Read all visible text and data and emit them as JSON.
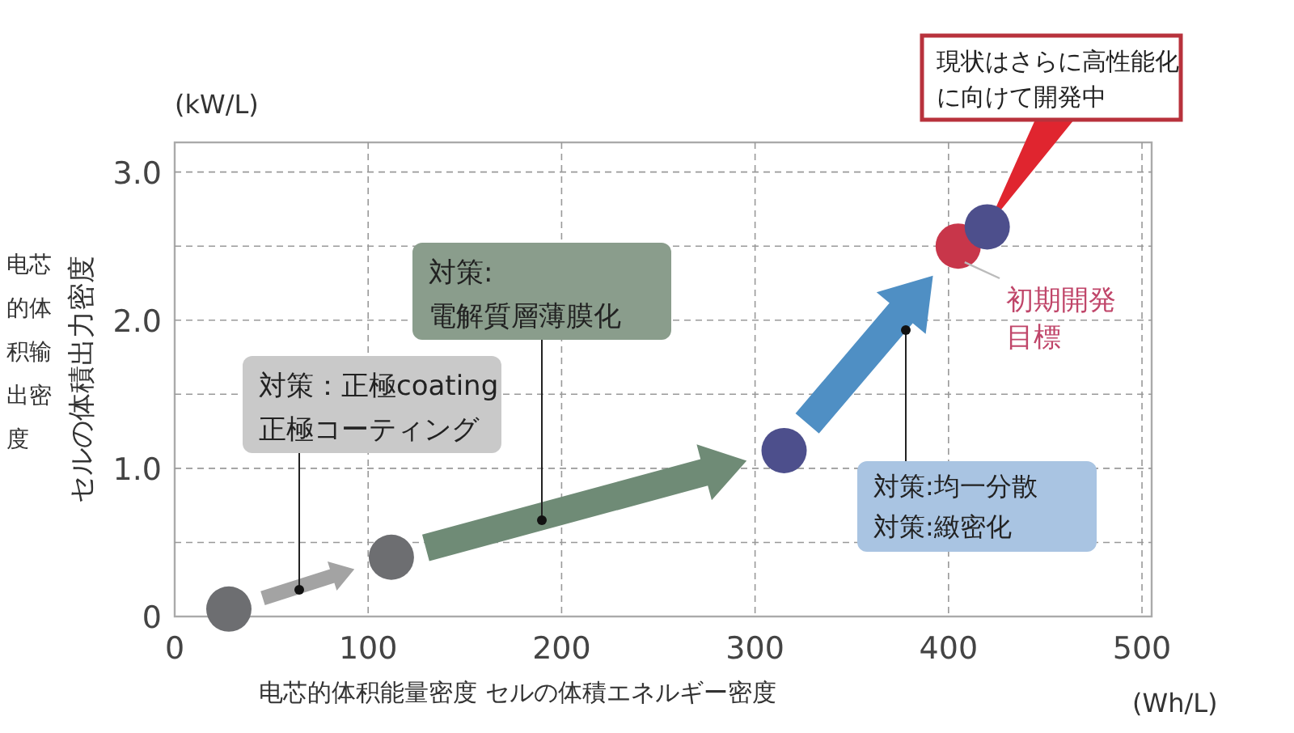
{
  "chart_data": {
    "type": "scatter",
    "x": [
      28,
      112,
      315,
      405,
      420
    ],
    "values": [
      0.05,
      0.4,
      1.12,
      2.5,
      2.63
    ],
    "colors": [
      "#6d6e71",
      "#6d6e71",
      "#4d4f8c",
      "#c8364a",
      "#4d4f8c"
    ],
    "xlim": [
      0,
      505
    ],
    "ylim": [
      0,
      3.2
    ],
    "xticks": [
      0,
      100,
      200,
      300,
      400,
      500
    ],
    "yticks": [
      {
        "value": 0,
        "label": "0"
      },
      {
        "value": 0.5,
        "label": null
      },
      {
        "value": 1,
        "label": "1.0"
      },
      {
        "value": 1.5,
        "label": null
      },
      {
        "value": 2,
        "label": "2.0"
      },
      {
        "value": 2.5,
        "label": null
      },
      {
        "value": 3,
        "label": "3.0"
      }
    ],
    "grid": true,
    "marker": "circle",
    "xlabel": "电芯的体积能量密度  セルの体積エネルギー密度",
    "ylabel": "セルの体積出力密度",
    "annotations": [
      "対策：正極coating\n正極コーティング",
      "対策:\n電解質層薄膜化",
      "対策:均一分散対策:緻密化",
      "現状はさらに高性能化に向けて開発中",
      {
        "text": "初期開発目標",
        "x": 405,
        "y": 2.5
      },
      "电芯的体积输出密度",
      "(kW/L)",
      "(Wh/L)"
    ]
  }
}
